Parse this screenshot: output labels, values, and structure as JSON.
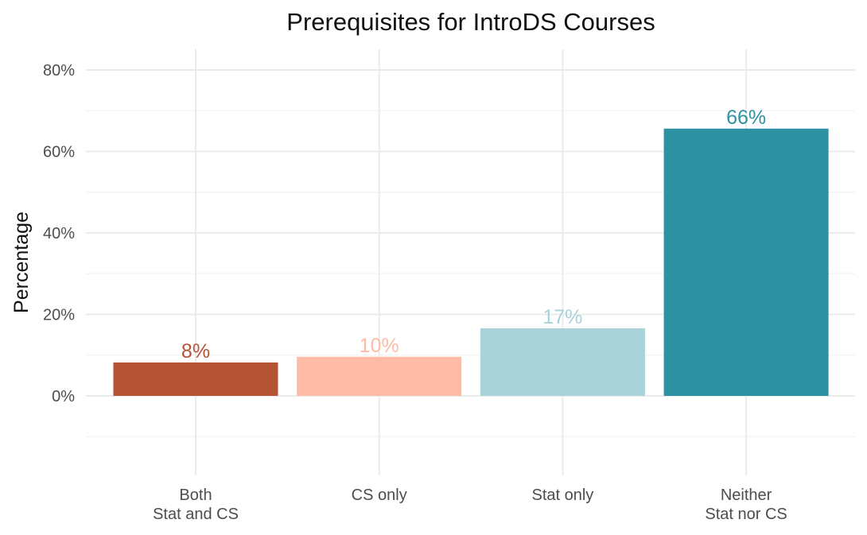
{
  "chart_data": {
    "type": "bar",
    "title": "Prerequisites for IntroDS Courses",
    "xlabel": "",
    "ylabel": "Percentage",
    "categories": [
      [
        "Both",
        "Stat and CS"
      ],
      [
        "CS only"
      ],
      [
        "Stat only"
      ],
      [
        "Neither",
        "Stat nor CS"
      ]
    ],
    "values": [
      8.2,
      9.6,
      16.6,
      65.6
    ],
    "data_labels": [
      "8%",
      "10%",
      "17%",
      "66%"
    ],
    "colors": [
      "#b55337",
      "#ffbba6",
      "#a9d2d9",
      "#2c91a1"
    ],
    "ylim": [
      -20,
      80
    ],
    "yticks": [
      0,
      20,
      40,
      60,
      80
    ],
    "ytick_labels": [
      "0%",
      "20%",
      "40%",
      "60%",
      "80%"
    ],
    "grid": true,
    "legend": "none"
  }
}
